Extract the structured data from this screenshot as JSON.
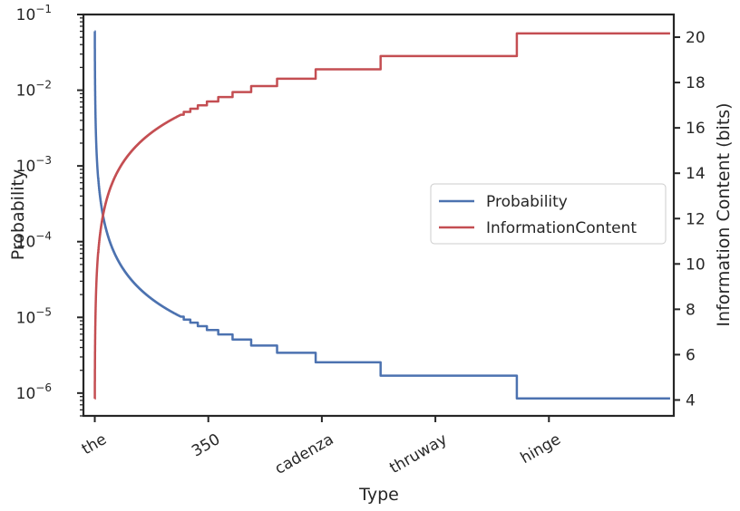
{
  "chart_data": {
    "type": "line",
    "xlabel": "Type",
    "ylabel_left": "Probability",
    "ylabel_right": "Information Content (bits)",
    "x_tick_labels": [
      "the",
      "350",
      "cadenza",
      "thruway",
      "hinge"
    ],
    "x_tick_positions": [
      0,
      2000,
      4000,
      6000,
      8000
    ],
    "xlim": [
      -200,
      10200
    ],
    "y_left_scale": "log",
    "y_left_lim": [
      5e-07,
      0.1
    ],
    "y_left_ticks": [
      {
        "value": 1e-06,
        "base": "10",
        "exp": "−6"
      },
      {
        "value": 1e-05,
        "base": "10",
        "exp": "−5"
      },
      {
        "value": 0.0001,
        "base": "10",
        "exp": "−4"
      },
      {
        "value": 0.001,
        "base": "10",
        "exp": "−3"
      },
      {
        "value": 0.01,
        "base": "10",
        "exp": "−2"
      },
      {
        "value": 0.1,
        "base": "10",
        "exp": "−1"
      }
    ],
    "y_right_lim": [
      3.3,
      21.0
    ],
    "y_right_ticks": [
      "4",
      "6",
      "8",
      "10",
      "12",
      "14",
      "16",
      "18",
      "20"
    ],
    "grid": false,
    "legend_position": "center-right",
    "series": [
      {
        "name": "Probability",
        "axis": "left",
        "color": "#4c72b0"
      },
      {
        "name": "InformationContent",
        "axis": "right",
        "color": "#c44e52"
      }
    ],
    "n_types": 10136,
    "top_probability": 0.06,
    "min_probability": 8.5e-07
  }
}
